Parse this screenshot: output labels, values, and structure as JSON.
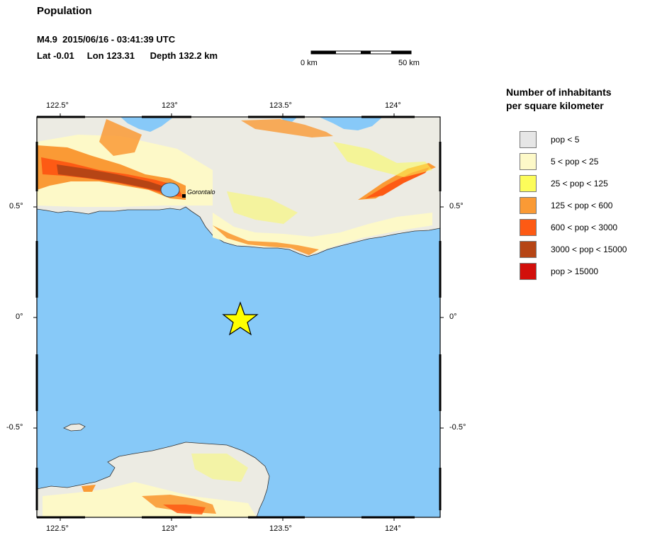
{
  "title": "Population",
  "event": {
    "line1": "M4.9  2015/06/16 - 03:41:39 UTC",
    "line2": "Lat -0.01     Lon 123.31      Depth 132.2 km"
  },
  "scale_bar": {
    "start_label": "0 km",
    "end_label": "50 km"
  },
  "legend": {
    "title_line1": "Number of inhabitants",
    "title_line2": "per square kilometer",
    "items": [
      {
        "label": "pop < 5",
        "color": "#e6e6e6"
      },
      {
        "label": "5 < pop < 25",
        "color": "#fdf9c8"
      },
      {
        "label": "25 < pop < 125",
        "color": "#fcfc5a"
      },
      {
        "label": "125 < pop < 600",
        "color": "#fa9a35"
      },
      {
        "label": "600 < pop < 3000",
        "color": "#fd5a14"
      },
      {
        "label": "3000 < pop < 15000",
        "color": "#b64515"
      },
      {
        "label": "pop > 15000",
        "color": "#d20f0b"
      }
    ]
  },
  "axes": {
    "lon_ticks": [
      "122.5°",
      "123°",
      "123.5°",
      "124°"
    ],
    "lat_ticks_left": [
      "0.5°",
      "0°",
      "-0.5°"
    ],
    "lat_ticks_right": [
      "0.5°",
      "0°",
      "-0.5°"
    ]
  },
  "map": {
    "city_label": "Gorontalo",
    "sea_color": "#87c9f8",
    "epicenter_color": "#ffff00"
  }
}
